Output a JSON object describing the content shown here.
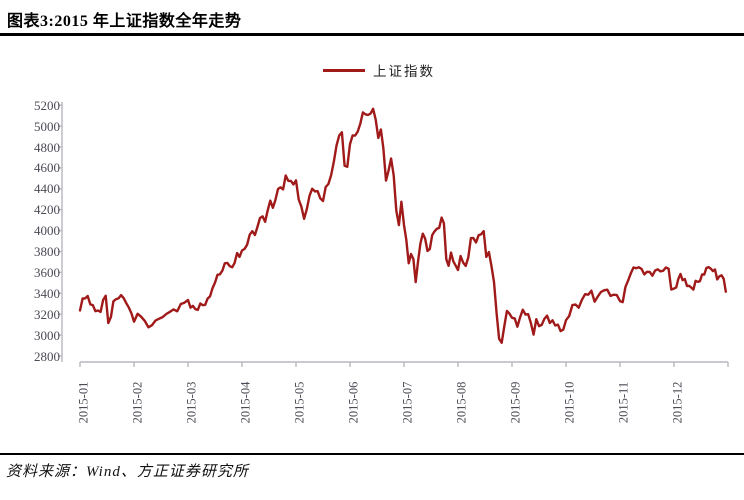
{
  "title": "图表3:2015 年上证指数全年走势",
  "source": "资料来源：Wind、方正证券研究所",
  "legend": {
    "label": "上证指数"
  },
  "colors": {
    "line": "#A01A1A",
    "axis": "#B7B7C0",
    "tick_text": "#4B4B55"
  },
  "chart_data": {
    "type": "line",
    "title": "图表3:2015 年上证指数全年走势",
    "legend_entries": [
      "上证指数"
    ],
    "legend_position": "top-center",
    "grid": false,
    "xlabel": "",
    "ylabel": "",
    "ylim": [
      2800,
      5200
    ],
    "ytick_step": 200,
    "yticks": [
      2800,
      3000,
      3200,
      3400,
      3600,
      3800,
      4000,
      4200,
      4400,
      4600,
      4800,
      5000,
      5200
    ],
    "x_tick_labels": [
      "2015-01",
      "2015-02",
      "2015-03",
      "2015-04",
      "2015-05",
      "2015-06",
      "2015-07",
      "2015-08",
      "2015-09",
      "2015-10",
      "2015-11",
      "2015-12"
    ],
    "months": [
      {
        "label": "2015-01",
        "values": [
          3235,
          3350,
          3351,
          3374,
          3294,
          3286,
          3229,
          3235,
          3222,
          3336,
          3376,
          3116,
          3173,
          3323,
          3344,
          3352,
          3383,
          3353,
          3305,
          3262,
          3210
        ]
      },
      {
        "label": "2015-02",
        "values": [
          3128,
          3205,
          3175,
          3136,
          3075,
          3095,
          3141,
          3157,
          3173,
          3203,
          3223,
          3246,
          3228,
          3298,
          3310
        ]
      },
      {
        "label": "2015-03",
        "values": [
          3336,
          3263,
          3279,
          3248,
          3241,
          3302,
          3286,
          3290,
          3349,
          3372,
          3449,
          3502,
          3577,
          3582,
          3617,
          3687,
          3691,
          3660,
          3649,
          3691,
          3786,
          3748
        ]
      },
      {
        "label": "2015-04",
        "values": [
          3810,
          3825,
          3864,
          3961,
          3994,
          3958,
          4034,
          4121,
          4136,
          4084,
          4194,
          4287,
          4218,
          4293,
          4398,
          4414,
          4394,
          4527,
          4476,
          4476,
          4441
        ]
      },
      {
        "label": "2015-05",
        "values": [
          4480,
          4298,
          4229,
          4113,
          4205,
          4333,
          4401,
          4375,
          4378,
          4308,
          4283,
          4417,
          4446,
          4529,
          4657,
          4813,
          4910,
          4941,
          4620,
          4611
        ]
      },
      {
        "label": "2015-06",
        "values": [
          4828,
          4910,
          4909,
          4947,
          5023,
          5131,
          5113,
          5106,
          5121,
          5166,
          5062,
          4887,
          4967,
          4785,
          4478,
          4576,
          4690,
          4527,
          4192,
          4053,
          4277
        ]
      },
      {
        "label": "2015-07",
        "values": [
          4054,
          3912,
          3687,
          3776,
          3727,
          3507,
          3709,
          3877,
          3970,
          3924,
          3805,
          3823,
          3957,
          3992,
          4018,
          4026,
          4124,
          4071,
          3726,
          3663,
          3789,
          3706,
          3664
        ]
      },
      {
        "label": "2015-08",
        "values": [
          3623,
          3757,
          3695,
          3662,
          3744,
          3928,
          3928,
          3886,
          3955,
          3965,
          3994,
          3748,
          3794,
          3664,
          3508,
          3210,
          2965,
          2927,
          3084,
          3232,
          3206
        ]
      },
      {
        "label": "2015-09",
        "values": [
          3166,
          3160,
          3080,
          3170,
          3243,
          3197,
          3200,
          3115,
          3005,
          3152,
          3086,
          3098,
          3156,
          3186,
          3116,
          3142,
          3092,
          3100,
          3038,
          3053
        ]
      },
      {
        "label": "2015-10",
        "values": [
          3143,
          3183,
          3287,
          3293,
          3262,
          3338,
          3391,
          3387,
          3425,
          3320,
          3369,
          3412,
          3429,
          3434,
          3375,
          3387,
          3383
        ]
      },
      {
        "label": "2015-11",
        "values": [
          3325,
          3316,
          3459,
          3522,
          3590,
          3647,
          3640,
          3650,
          3633,
          3581,
          3606,
          3605,
          3568,
          3617,
          3630,
          3610,
          3616,
          3647,
          3635,
          3436
        ]
      },
      {
        "label": "2015-12",
        "values": [
          3445,
          3456,
          3537,
          3585,
          3525,
          3537,
          3470,
          3472,
          3455,
          3435,
          3520,
          3510,
          3516,
          3580,
          3579,
          3642,
          3651,
          3636,
          3612,
          3628,
          3533,
          3563,
          3572,
          3539,
          3415
        ]
      }
    ]
  }
}
